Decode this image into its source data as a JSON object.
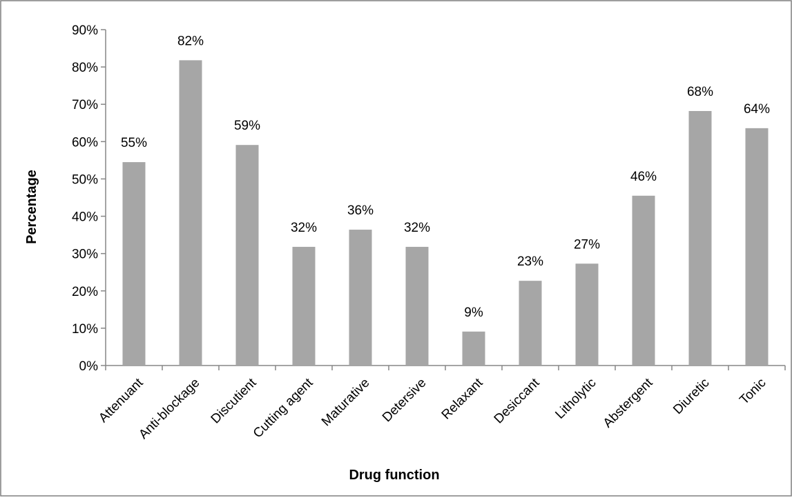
{
  "chart_data": {
    "type": "bar",
    "title": "",
    "xlabel": "Drug function",
    "ylabel": "Percentage",
    "ylim": [
      0,
      90
    ],
    "y_ticks": [
      0,
      10,
      20,
      30,
      40,
      50,
      60,
      70,
      80,
      90
    ],
    "y_tick_labels": [
      "0%",
      "10%",
      "20%",
      "30%",
      "40%",
      "50%",
      "60%",
      "70%",
      "80%",
      "90%"
    ],
    "categories": [
      "Attenuant",
      "Anti-blockage",
      "Discutient",
      "Cutting agent",
      "Maturative",
      "Detersive",
      "Relaxant",
      "Desiccant",
      "Litholytic",
      "Abstergent",
      "Diuretic",
      "Tonic"
    ],
    "values": [
      54.5,
      81.8,
      59.1,
      31.8,
      36.4,
      31.8,
      9.1,
      22.7,
      27.3,
      45.5,
      68.2,
      63.6
    ],
    "data_labels": [
      "55%",
      "82%",
      "59%",
      "32%",
      "36%",
      "32%",
      "9%",
      "23%",
      "27%",
      "46%",
      "68%",
      "64%"
    ],
    "bar_color": "#a6a6a6",
    "grid": false,
    "legend": "none"
  }
}
